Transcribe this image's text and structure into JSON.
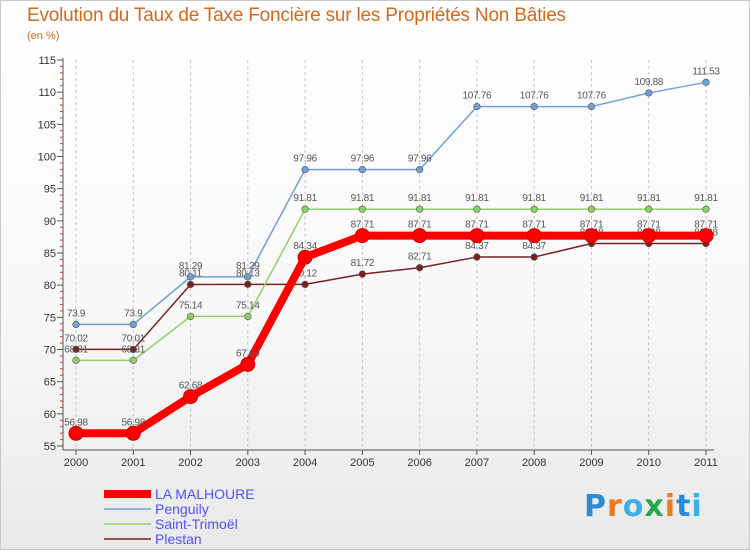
{
  "title": "Evolution du Taux de Taxe Foncière sur les Propriétés Non Bâties",
  "unit_label": "(en %)",
  "brand": "Proxiti",
  "chart_data": {
    "type": "line",
    "title": "Evolution du Taux de Taxe Foncière sur les Propriétés Non Bâties",
    "ylabel": "(en %)",
    "xlabel": "",
    "x": [
      "2000",
      "2001",
      "2002",
      "2003",
      "2004",
      "2005",
      "2006",
      "2007",
      "2008",
      "2009",
      "2010",
      "2011"
    ],
    "ylim": [
      55,
      115
    ],
    "yticks": [
      55,
      60,
      65,
      70,
      75,
      80,
      85,
      90,
      95,
      100,
      105,
      110,
      115
    ],
    "grid": "vertical-dashed",
    "series": [
      {
        "name": "Plestan",
        "color": "#7a2020",
        "values": [
          70.02,
          70.01,
          80.11,
          80.13,
          80.12,
          81.72,
          82.71,
          84.37,
          84.37,
          86.48,
          86.48,
          86.48
        ],
        "labels": [
          "70.02",
          "70.01",
          "80.11",
          "80.13",
          "80.12",
          "81.72",
          "82.71",
          "84.37",
          "84.37",
          "86.48",
          "86.48",
          "86.48"
        ]
      },
      {
        "name": "Saint-Trimoël",
        "color": "#8fd06a",
        "values": [
          68.31,
          68.31,
          75.14,
          75.14,
          91.81,
          91.81,
          91.81,
          91.81,
          91.81,
          91.81,
          91.81,
          91.81
        ],
        "labels": [
          "68.31",
          "68.31",
          "75.14",
          "75.14",
          "91.81",
          "91.81",
          "91.81",
          "91.81",
          "91.81",
          "91.81",
          "91.81",
          "91.81"
        ]
      },
      {
        "name": "Penguily",
        "color": "#6fa0d8",
        "values": [
          73.9,
          73.9,
          81.29,
          81.29,
          97.96,
          97.96,
          97.96,
          107.76,
          107.76,
          107.76,
          109.88,
          111.53
        ],
        "labels": [
          "73.9",
          "73.9",
          "81.29",
          "81.29",
          "97.96",
          "97.96",
          "97.96",
          "107.76",
          "107.76",
          "107.76",
          "109.88",
          "111.53"
        ]
      },
      {
        "name": "LA MALHOURE",
        "color": "#ff0000",
        "values": [
          56.98,
          56.98,
          62.68,
          67.69,
          84.34,
          87.71,
          87.71,
          87.71,
          87.71,
          87.71,
          87.71,
          87.71
        ],
        "labels": [
          "56.98",
          "56.98",
          "62.68",
          "67.69",
          "84.34",
          "87.71",
          "87.71",
          "87.71",
          "87.71",
          "87.71",
          "87.71",
          "87.71"
        ]
      }
    ],
    "legend": [
      "LA MALHOURE",
      "Penguily",
      "Saint-Trimoël",
      "Plestan"
    ],
    "legend_position": "bottom-left"
  }
}
